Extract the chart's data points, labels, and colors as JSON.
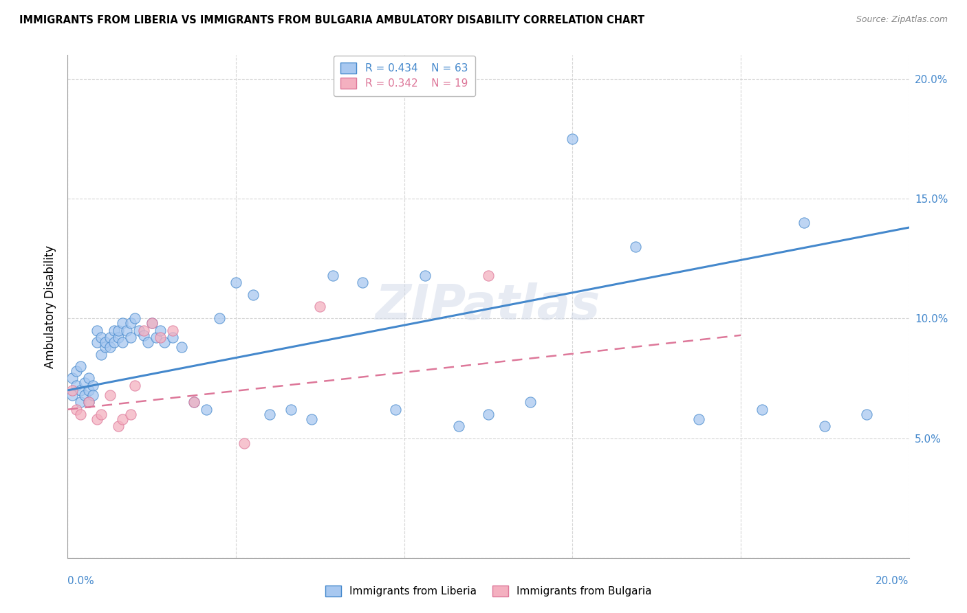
{
  "title": "IMMIGRANTS FROM LIBERIA VS IMMIGRANTS FROM BULGARIA AMBULATORY DISABILITY CORRELATION CHART",
  "source": "Source: ZipAtlas.com",
  "ylabel": "Ambulatory Disability",
  "xmin": 0.0,
  "xmax": 0.2,
  "ymin": 0.0,
  "ymax": 0.21,
  "ytick_right": [
    0.05,
    0.1,
    0.15,
    0.2
  ],
  "liberia_R": 0.434,
  "liberia_N": 63,
  "bulgaria_R": 0.342,
  "bulgaria_N": 19,
  "liberia_color": "#a8c8f0",
  "bulgaria_color": "#f4b0c0",
  "liberia_line_color": "#4488cc",
  "bulgaria_line_color": "#dd7799",
  "liberia_x": [
    0.001,
    0.001,
    0.002,
    0.002,
    0.003,
    0.003,
    0.003,
    0.004,
    0.004,
    0.005,
    0.005,
    0.005,
    0.006,
    0.006,
    0.007,
    0.007,
    0.008,
    0.008,
    0.009,
    0.009,
    0.01,
    0.01,
    0.011,
    0.011,
    0.012,
    0.012,
    0.013,
    0.013,
    0.014,
    0.015,
    0.015,
    0.016,
    0.017,
    0.018,
    0.019,
    0.02,
    0.021,
    0.022,
    0.023,
    0.025,
    0.027,
    0.03,
    0.033,
    0.036,
    0.04,
    0.044,
    0.048,
    0.053,
    0.058,
    0.063,
    0.07,
    0.078,
    0.085,
    0.093,
    0.1,
    0.11,
    0.12,
    0.135,
    0.15,
    0.165,
    0.175,
    0.18,
    0.19
  ],
  "liberia_y": [
    0.075,
    0.068,
    0.078,
    0.072,
    0.065,
    0.07,
    0.08,
    0.068,
    0.073,
    0.07,
    0.075,
    0.065,
    0.072,
    0.068,
    0.09,
    0.095,
    0.085,
    0.092,
    0.088,
    0.09,
    0.092,
    0.088,
    0.095,
    0.09,
    0.092,
    0.095,
    0.09,
    0.098,
    0.095,
    0.092,
    0.098,
    0.1,
    0.095,
    0.093,
    0.09,
    0.098,
    0.092,
    0.095,
    0.09,
    0.092,
    0.088,
    0.065,
    0.062,
    0.1,
    0.115,
    0.11,
    0.06,
    0.062,
    0.058,
    0.118,
    0.115,
    0.062,
    0.118,
    0.055,
    0.06,
    0.065,
    0.175,
    0.13,
    0.058,
    0.062,
    0.14,
    0.055,
    0.06
  ],
  "bulgaria_x": [
    0.001,
    0.002,
    0.003,
    0.005,
    0.007,
    0.008,
    0.01,
    0.012,
    0.013,
    0.015,
    0.016,
    0.018,
    0.02,
    0.022,
    0.025,
    0.03,
    0.042,
    0.06,
    0.1
  ],
  "bulgaria_y": [
    0.07,
    0.062,
    0.06,
    0.065,
    0.058,
    0.06,
    0.068,
    0.055,
    0.058,
    0.06,
    0.072,
    0.095,
    0.098,
    0.092,
    0.095,
    0.065,
    0.048,
    0.105,
    0.118
  ],
  "liberia_line_x0": 0.0,
  "liberia_line_x1": 0.2,
  "liberia_line_y0": 0.07,
  "liberia_line_y1": 0.138,
  "bulgaria_line_x0": 0.0,
  "bulgaria_line_x1": 0.16,
  "bulgaria_line_y0": 0.062,
  "bulgaria_line_y1": 0.093
}
